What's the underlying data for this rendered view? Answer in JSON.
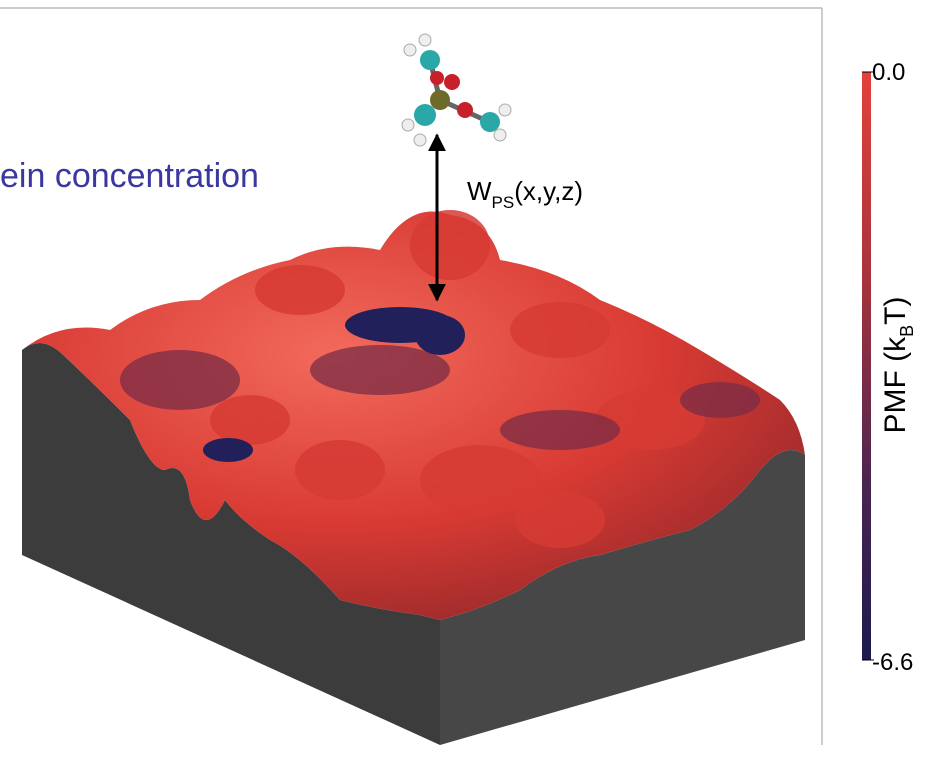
{
  "figure": {
    "headline": "ein concentration",
    "arrow_label": {
      "main": "W",
      "subscript": "PS",
      "suffix": "(x,y,z)"
    },
    "colorbar": {
      "ticks": [
        {
          "value": 0,
          "label": "0.0"
        },
        -6.6
      ],
      "label": {
        "main": "PMF (k",
        "subscript": "B",
        "suffix": "T)"
      }
    }
  }
}
